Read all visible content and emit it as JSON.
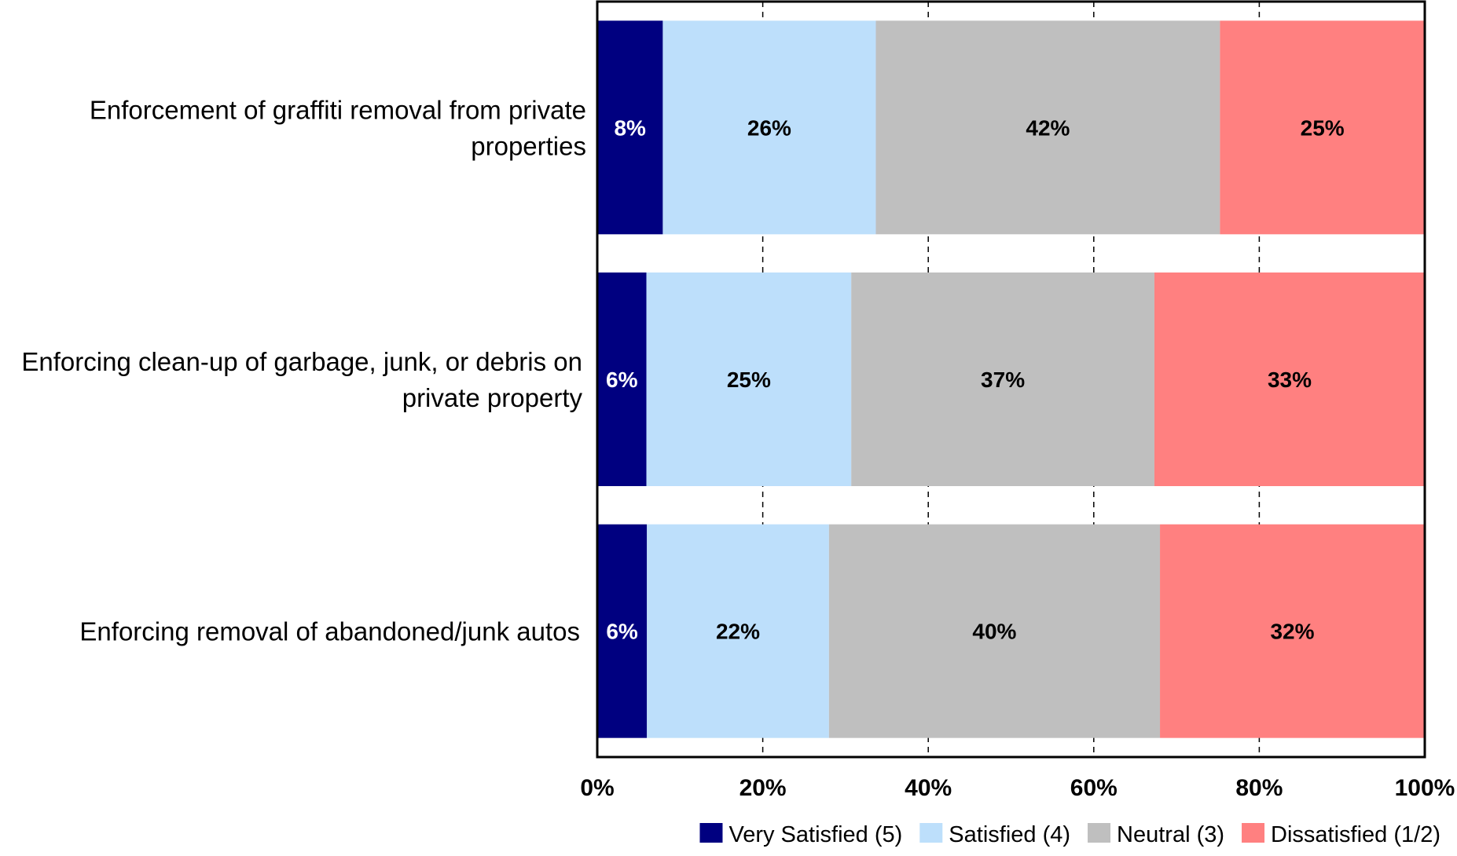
{
  "chart_data": {
    "type": "bar",
    "orientation": "horizontal",
    "stacked": true,
    "title": "",
    "xlabel": "",
    "ylabel": "",
    "xlim": [
      0,
      100
    ],
    "x_ticks": [
      "0%",
      "20%",
      "40%",
      "60%",
      "80%",
      "100%"
    ],
    "grid": "vertical dashed",
    "legend_position": "bottom-right",
    "categories": [
      [
        "Enforcement of graffiti removal from private",
        "properties"
      ],
      [
        "Enforcing clean-up of garbage, junk, or debris on",
        "private property"
      ],
      [
        "Enforcing removal of abandoned/junk autos"
      ]
    ],
    "series": [
      {
        "name": "Very Satisfied (5)",
        "color": "#000080",
        "label_color": "#ffffff",
        "values": [
          8,
          6,
          6
        ],
        "labels": [
          "8%",
          "6%",
          "6%"
        ]
      },
      {
        "name": "Satisfied (4)",
        "color": "#BDDFFB",
        "label_color": "#000000",
        "values": [
          26,
          25,
          22
        ],
        "labels": [
          "26%",
          "25%",
          "22%"
        ]
      },
      {
        "name": "Neutral (3)",
        "color": "#BFBFBF",
        "label_color": "#000000",
        "values": [
          42,
          37,
          40
        ],
        "labels": [
          "42%",
          "37%",
          "40%"
        ]
      },
      {
        "name": "Dissatisfied (1/2)",
        "color": "#FF8080",
        "label_color": "#000000",
        "values": [
          25,
          33,
          32
        ],
        "labels": [
          "25%",
          "33%",
          "32%"
        ]
      }
    ]
  }
}
